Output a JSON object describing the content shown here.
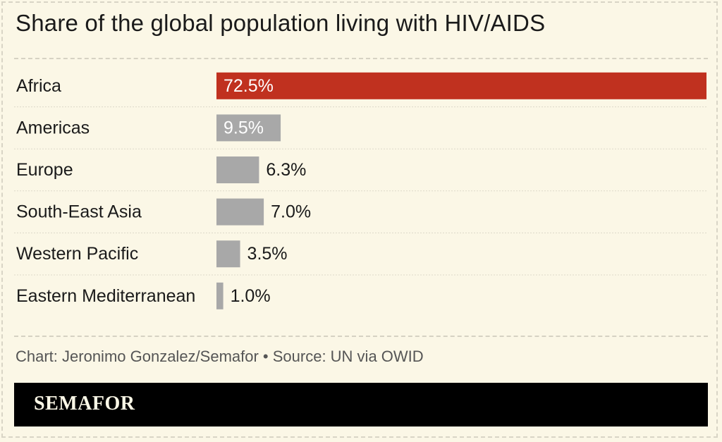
{
  "title": "Share of the global population living with HIV/AIDS",
  "credit": "Chart: Jeronimo Gonzalez/Semafor • Source: UN via OWID",
  "brand": "SEMAFOR",
  "colors": {
    "background": "#fbf7e6",
    "highlight": "#c0311f",
    "bar": "#a8a8a8",
    "inside_label": "#ffffff",
    "outside_label": "#1a1a1a"
  },
  "chart_data": {
    "type": "bar",
    "orientation": "horizontal",
    "categories": [
      "Africa",
      "Americas",
      "Europe",
      "South-East Asia",
      "Western Pacific",
      "Eastern Mediterranean"
    ],
    "values": [
      72.5,
      9.5,
      6.3,
      7.0,
      3.5,
      1.0
    ],
    "value_labels": [
      "72.5%",
      "9.5%",
      "6.3%",
      "7.0%",
      "3.5%",
      "1.0%"
    ],
    "highlighted": "Africa",
    "xlim": [
      0,
      72.5
    ],
    "unit": "%"
  }
}
